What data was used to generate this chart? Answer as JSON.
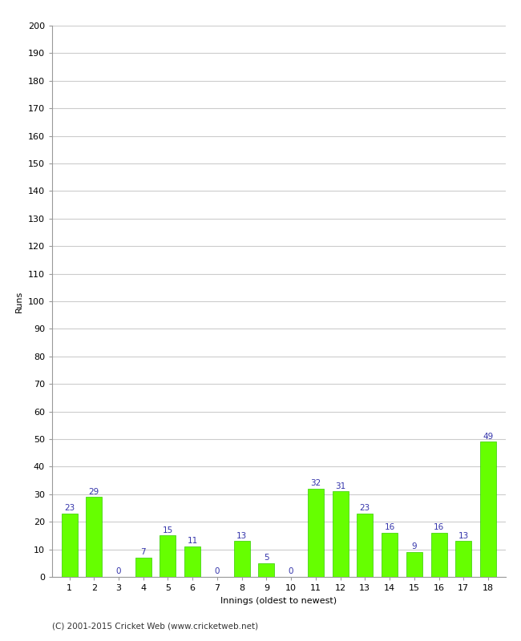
{
  "innings": [
    1,
    2,
    3,
    4,
    5,
    6,
    7,
    8,
    9,
    10,
    11,
    12,
    13,
    14,
    15,
    16,
    17,
    18
  ],
  "runs": [
    23,
    29,
    0,
    7,
    15,
    11,
    0,
    13,
    5,
    0,
    32,
    31,
    23,
    16,
    9,
    16,
    13,
    49
  ],
  "bar_color": "#66ff00",
  "bar_edge_color": "#33cc00",
  "label_color": "#3333aa",
  "xlabel": "Innings (oldest to newest)",
  "ylabel": "Runs",
  "ylim": [
    0,
    200
  ],
  "yticks": [
    0,
    10,
    20,
    30,
    40,
    50,
    60,
    70,
    80,
    90,
    100,
    110,
    120,
    130,
    140,
    150,
    160,
    170,
    180,
    190,
    200
  ],
  "footer": "(C) 2001-2015 Cricket Web (www.cricketweb.net)",
  "background_color": "#ffffff",
  "grid_color": "#cccccc",
  "label_fontsize": 7.5,
  "tick_fontsize": 8,
  "axis_label_fontsize": 8,
  "footer_fontsize": 7.5,
  "bar_width": 0.65
}
